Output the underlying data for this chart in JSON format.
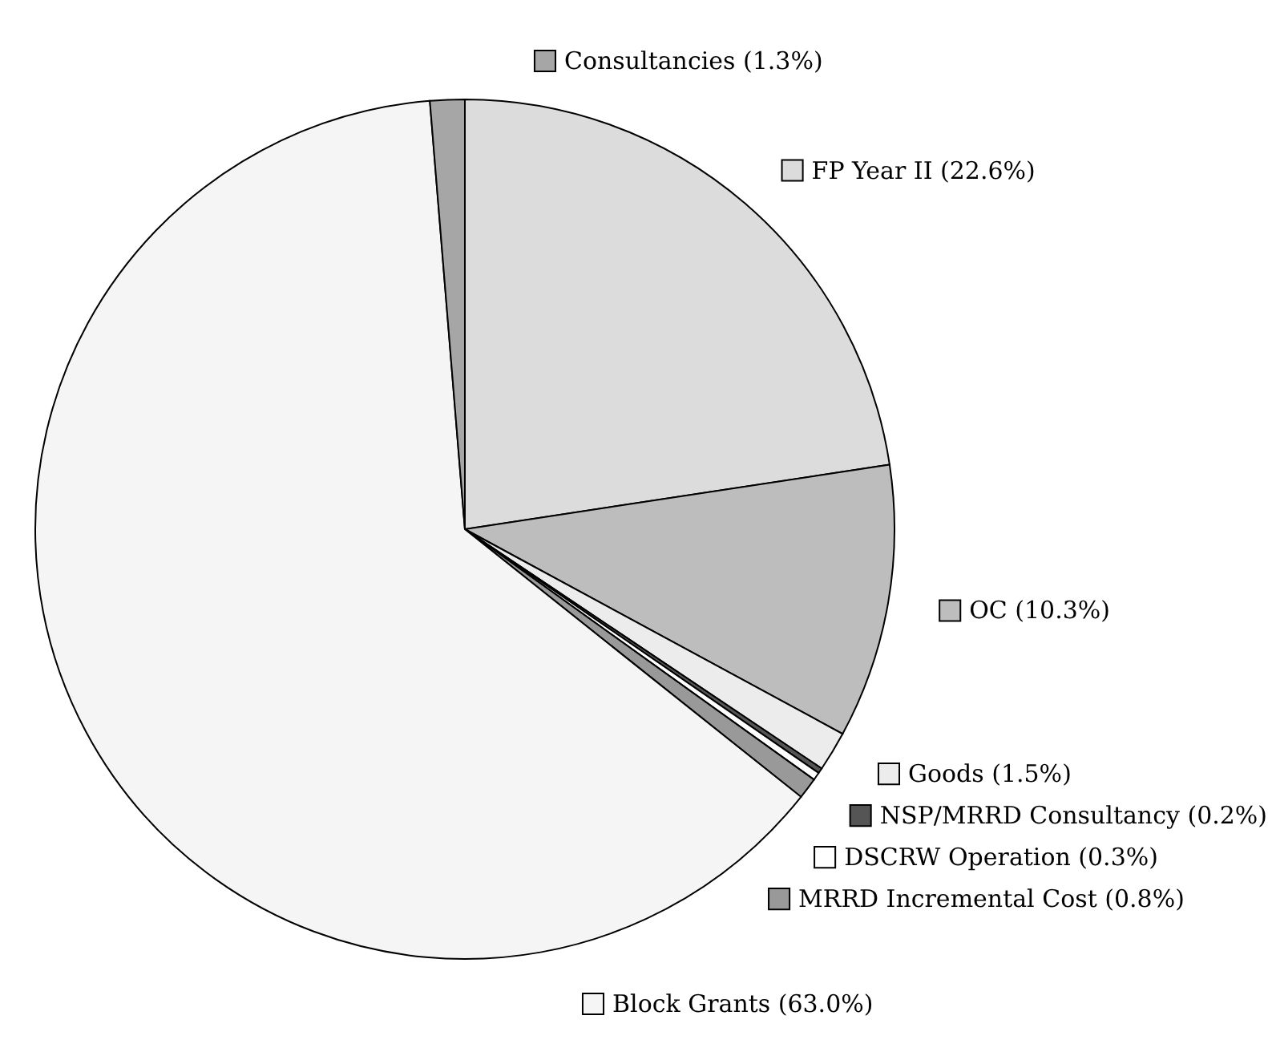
{
  "chart_data": {
    "type": "pie",
    "categories": [
      "FP Year II (22.6%)",
      "OC (10.3%)",
      "Goods (1.5%)",
      "NSP/MRRD Consultancy (0.2%)",
      "DSCRW Operation (0.3%)",
      "MRRD Incremental Cost (0.8%)",
      "Block Grants (63.0%)",
      "Consultancies (1.3%)"
    ],
    "values": [
      22.6,
      10.3,
      1.5,
      0.2,
      0.3,
      0.8,
      63.0,
      1.3
    ],
    "legend": "right",
    "colors": [
      "#dcdcdc",
      "#bdbdbd",
      "#ececec",
      "#555555",
      "#ffffff",
      "#999999",
      "#f5f5f5",
      "#a6a6a6"
    ]
  }
}
